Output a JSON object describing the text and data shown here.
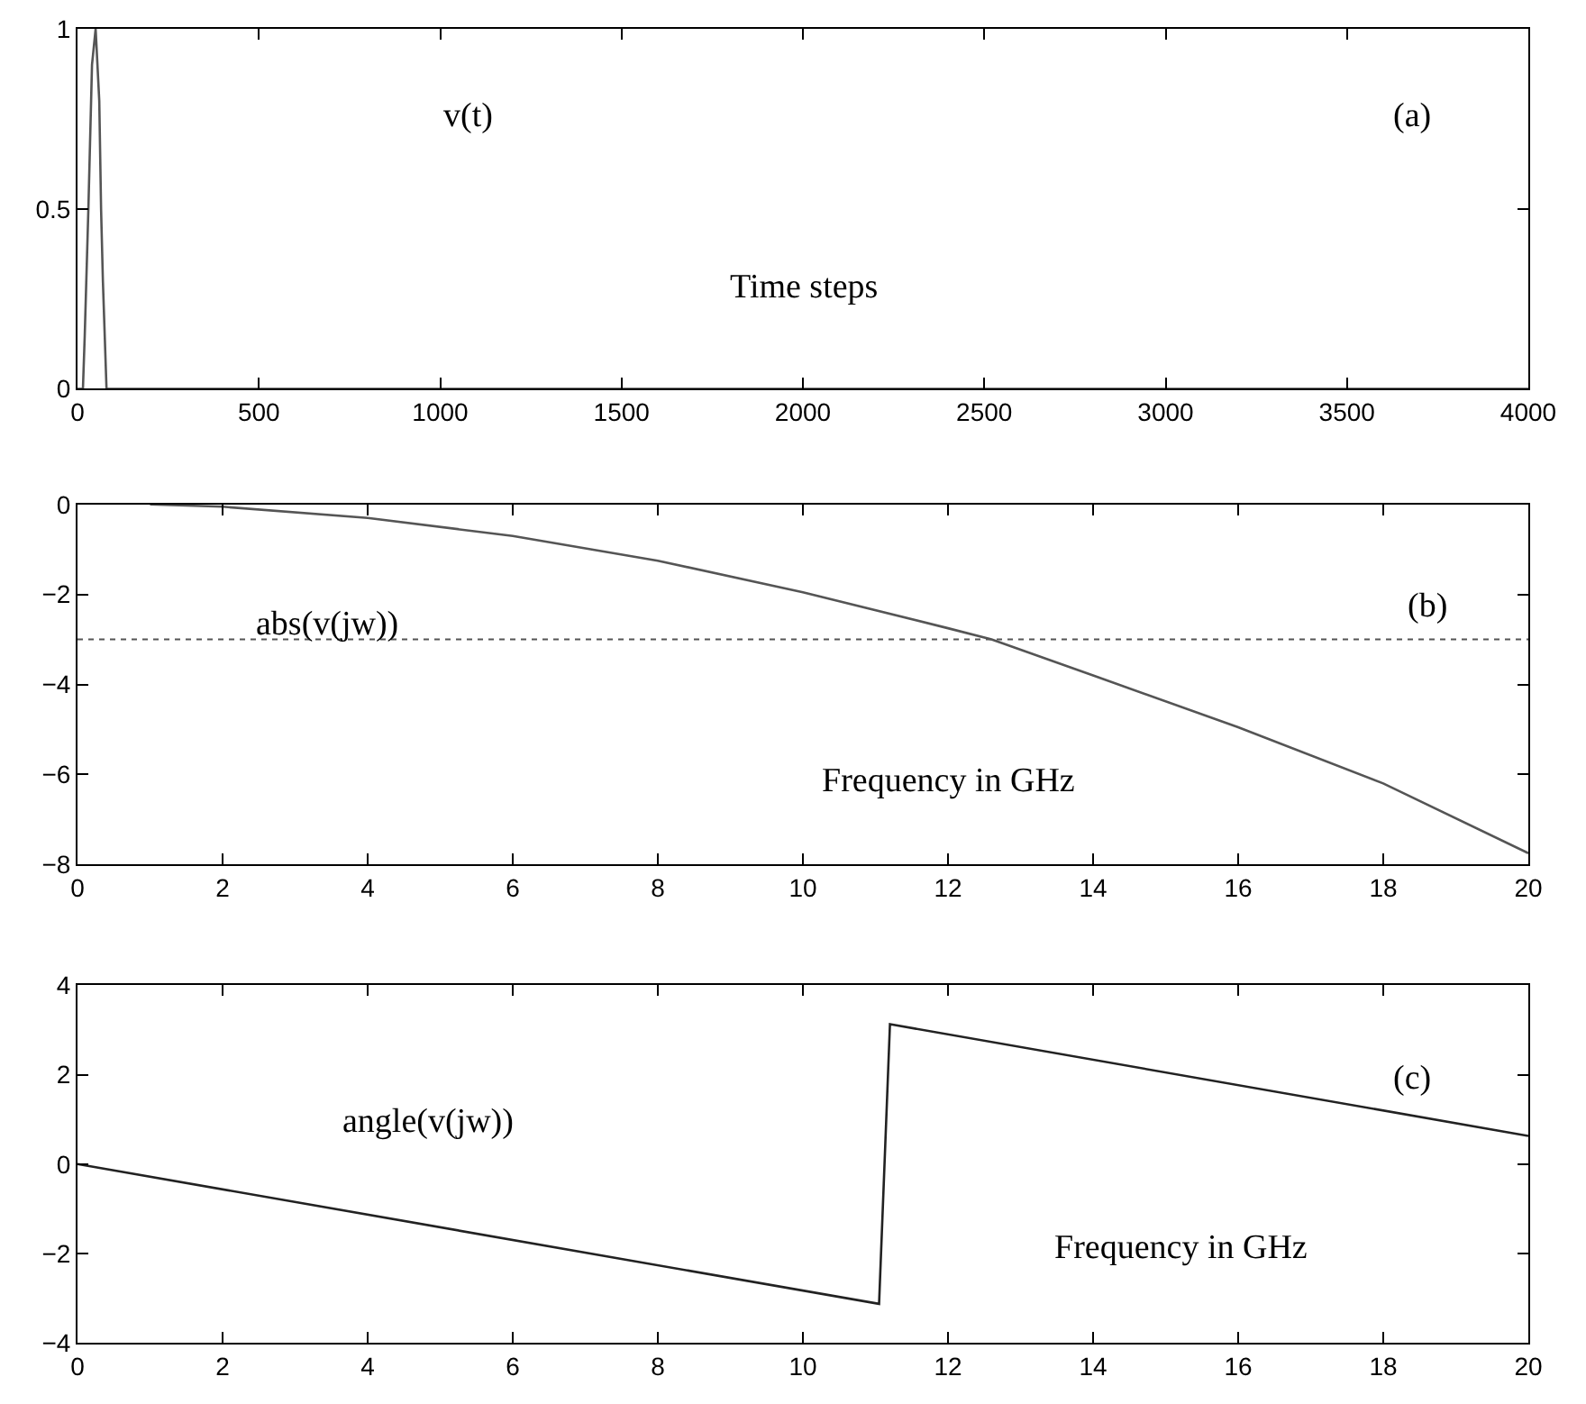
{
  "chart_data": [
    {
      "type": "line",
      "series": [
        {
          "name": "v(t)",
          "color": "#555555",
          "x": [
            0,
            15,
            20,
            30,
            40,
            50,
            60,
            65,
            70,
            80,
            4000
          ],
          "values": [
            0,
            0,
            0.15,
            0.5,
            0.9,
            1,
            0.8,
            0.5,
            0.3,
            0,
            0
          ]
        }
      ],
      "xlim": [
        0,
        4000
      ],
      "xticks": [
        0,
        500,
        1000,
        1500,
        2000,
        2500,
        3000,
        3500,
        4000
      ],
      "ylim": [
        0,
        1
      ],
      "yticks": [
        0,
        0.5,
        1
      ],
      "grid": false,
      "legend": false,
      "annotations": [
        "(a)",
        "Time steps"
      ]
    },
    {
      "type": "line",
      "series": [
        {
          "name": "abs(v(jw))",
          "color": "#555555",
          "x": [
            1,
            2,
            4,
            6,
            8,
            10,
            12,
            12.6,
            14,
            16,
            18,
            20
          ],
          "values": [
            0,
            -0.05,
            -0.3,
            -0.7,
            -1.25,
            -1.95,
            -2.75,
            -3,
            -3.8,
            -4.95,
            -6.2,
            -7.75
          ]
        }
      ],
      "xlim": [
        0,
        20
      ],
      "xticks": [
        0,
        2,
        4,
        6,
        8,
        10,
        12,
        14,
        16,
        18,
        20
      ],
      "ylim": [
        -8,
        0
      ],
      "yticks": [
        -8,
        -6,
        -4,
        -2,
        0
      ],
      "grid": false,
      "legend": false,
      "ref_lines": [
        {
          "axis": "y",
          "value": -3,
          "line_style": "dotted",
          "color": "#555555"
        }
      ],
      "annotations": [
        "(b)",
        "Frequency in GHz"
      ]
    },
    {
      "type": "line",
      "series": [
        {
          "name": "angle(v(jw))",
          "color": "#222222",
          "x": [
            0,
            11.05,
            11.2,
            20
          ],
          "values": [
            0,
            -3.13,
            3.13,
            0.63
          ]
        }
      ],
      "xlim": [
        0,
        20
      ],
      "xticks": [
        0,
        2,
        4,
        6,
        8,
        10,
        12,
        14,
        16,
        18,
        20
      ],
      "ylim": [
        -4,
        4
      ],
      "yticks": [
        -4,
        -2,
        0,
        2,
        4
      ],
      "grid": false,
      "legend": false,
      "annotations": [
        "(c)",
        "Frequency in GHz"
      ]
    }
  ]
}
